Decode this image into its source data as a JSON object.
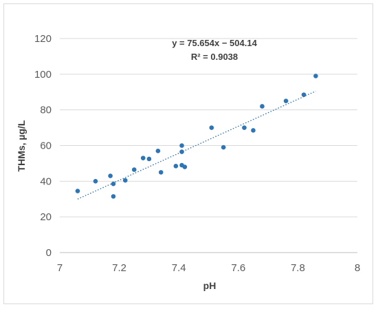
{
  "chart_data": {
    "type": "scatter",
    "title": "",
    "xlabel": "pH",
    "ylabel": "THMs, µg/L",
    "xlim": [
      7,
      8
    ],
    "ylim": [
      0,
      120
    ],
    "x_ticks": [
      "7",
      "7.2",
      "7.4",
      "7.6",
      "7.8",
      "8"
    ],
    "y_ticks": [
      "0",
      "20",
      "40",
      "60",
      "80",
      "100",
      "120"
    ],
    "grid": "horizontal",
    "legend": "none",
    "marker_color": "#2e75b6",
    "trendline_color": "#2e75b6",
    "trendline": {
      "slope": 75.654,
      "intercept": -504.14,
      "x_range": [
        7.06,
        7.86
      ]
    },
    "annotations": [
      "y = 75.654x − 504.14",
      "R² = 0.9038"
    ],
    "series": [
      {
        "x": [
          7.06,
          7.12,
          7.17,
          7.18,
          7.18,
          7.22,
          7.25,
          7.28,
          7.3,
          7.33,
          7.34,
          7.39,
          7.41,
          7.41,
          7.41,
          7.42,
          7.51,
          7.55,
          7.62,
          7.65,
          7.68,
          7.76,
          7.82,
          7.86
        ],
        "y": [
          34.5,
          40,
          43,
          38.5,
          31.5,
          40.5,
          46.5,
          53,
          52.5,
          57,
          45,
          48.5,
          49,
          60,
          56.5,
          48,
          70,
          59,
          70,
          68.5,
          82,
          85,
          88.5,
          99
        ]
      }
    ]
  }
}
